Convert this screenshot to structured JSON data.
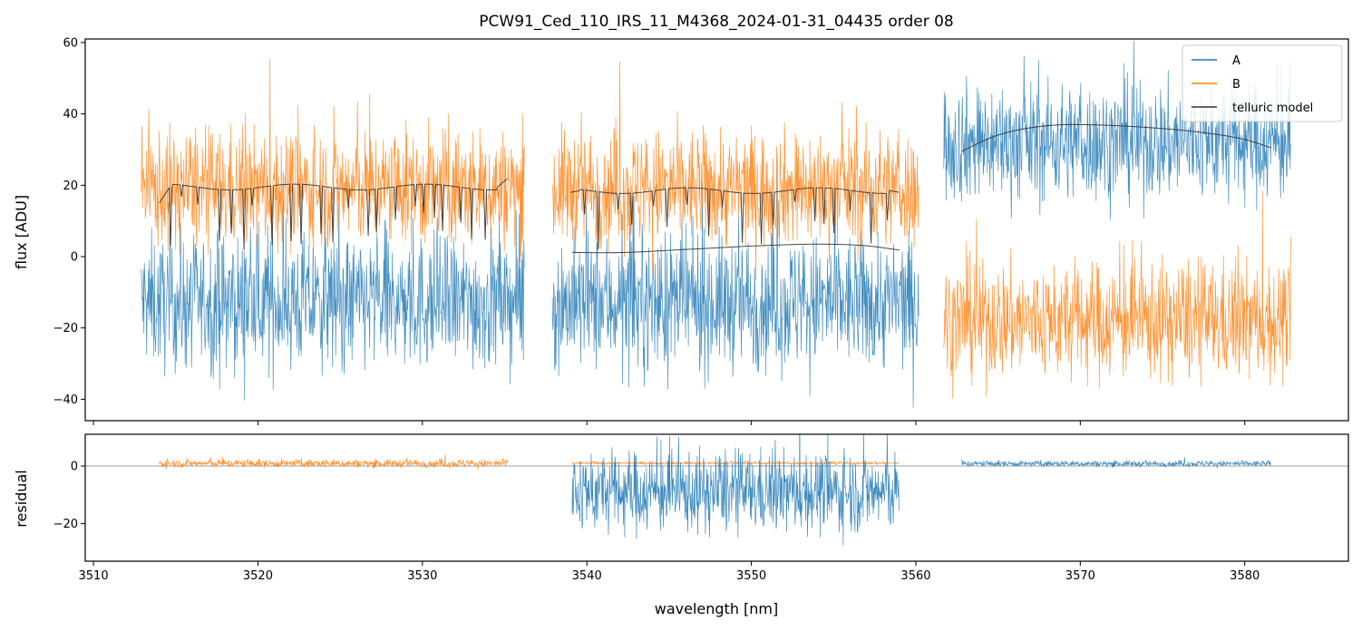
{
  "chart_data": {
    "type": "line",
    "title": "PCW91_Ced_110_IRS_11_M4368_2024-01-31_04435  order 08",
    "colors": {
      "A": "#1f77b4",
      "B": "#ff7f0e",
      "telluric": "#333333",
      "zero": "#808080"
    },
    "top_panel": {
      "ylabel": "flux [ADU]",
      "xlim": [
        3509.5,
        3586.3
      ],
      "ylim": [
        -46,
        61
      ],
      "yticks": [
        -40,
        -20,
        0,
        20,
        40,
        60
      ],
      "series": [
        {
          "name": "A",
          "segments": [
            {
              "x": [
                3512.9,
                3536.2
              ],
              "center": -13,
              "noise": 16
            },
            {
              "x": [
                3537.9,
                3560.2
              ],
              "center": -13,
              "noise": 16
            },
            {
              "x": [
                3561.7,
                3582.8
              ],
              "center": 32,
              "noise": 14
            }
          ]
        },
        {
          "name": "B",
          "segments": [
            {
              "x": [
                3512.9,
                3536.2
              ],
              "center": 19,
              "noise": 14
            },
            {
              "x": [
                3537.9,
                3560.2
              ],
              "center": 19,
              "noise": 14
            },
            {
              "x": [
                3561.7,
                3582.8
              ],
              "center": -18,
              "noise": 14
            }
          ]
        }
      ],
      "telluric_model": [
        {
          "x": [
            3514.0,
            3535.2
          ],
          "base": 19.5,
          "edge_values": [
            15,
            22
          ]
        },
        {
          "x": [
            3539.0,
            3559.0
          ],
          "base": 18.5,
          "edge_values": [
            18,
            18
          ]
        },
        {
          "x": [
            3539.1,
            3559.0
          ],
          "points": [
            [
              3539.1,
              1.2
            ],
            [
              3542,
              1.0
            ],
            [
              3546,
              2.0
            ],
            [
              3550,
              3.0
            ],
            [
              3554,
              3.6
            ],
            [
              3557,
              3.2
            ],
            [
              3559,
              1.8
            ]
          ]
        },
        {
          "x": [
            3562.8,
            3581.6
          ],
          "points": [
            [
              3562.8,
              29.5
            ],
            [
              3565,
              34.5
            ],
            [
              3568,
              37.0
            ],
            [
              3571,
              37.0
            ],
            [
              3575,
              36.0
            ],
            [
              3578,
              34.5
            ],
            [
              3580,
              33.0
            ],
            [
              3581.6,
              30.5
            ]
          ]
        }
      ]
    },
    "bottom_panel": {
      "ylabel": "residual",
      "xlabel": "wavelength [nm]",
      "xlim": [
        3509.5,
        3586.3
      ],
      "ylim": [
        -33,
        11
      ],
      "yticks": [
        -20,
        0
      ],
      "xticks": [
        3510,
        3520,
        3530,
        3540,
        3550,
        3560,
        3570,
        3580
      ],
      "series": [
        {
          "name": "B",
          "segments": [
            {
              "x": [
                3514.0,
                3535.2
              ],
              "center": 0.9,
              "noise": 1.2
            },
            {
              "x": [
                3539.1,
                3559.0
              ],
              "center": 1.0,
              "noise": 0.4
            }
          ]
        },
        {
          "name": "A",
          "segments": [
            {
              "x": [
                3539.1,
                3559.0
              ],
              "center": -9,
              "noise": 12
            },
            {
              "x": [
                3562.8,
                3581.6
              ],
              "center": 0.8,
              "noise": 0.9
            }
          ]
        }
      ]
    },
    "legend": {
      "placement": "top-right",
      "entries": [
        {
          "label": "A",
          "color": "#1f77b4"
        },
        {
          "label": "B",
          "color": "#ff7f0e"
        },
        {
          "label": "telluric model",
          "color": "#333333"
        }
      ]
    }
  }
}
